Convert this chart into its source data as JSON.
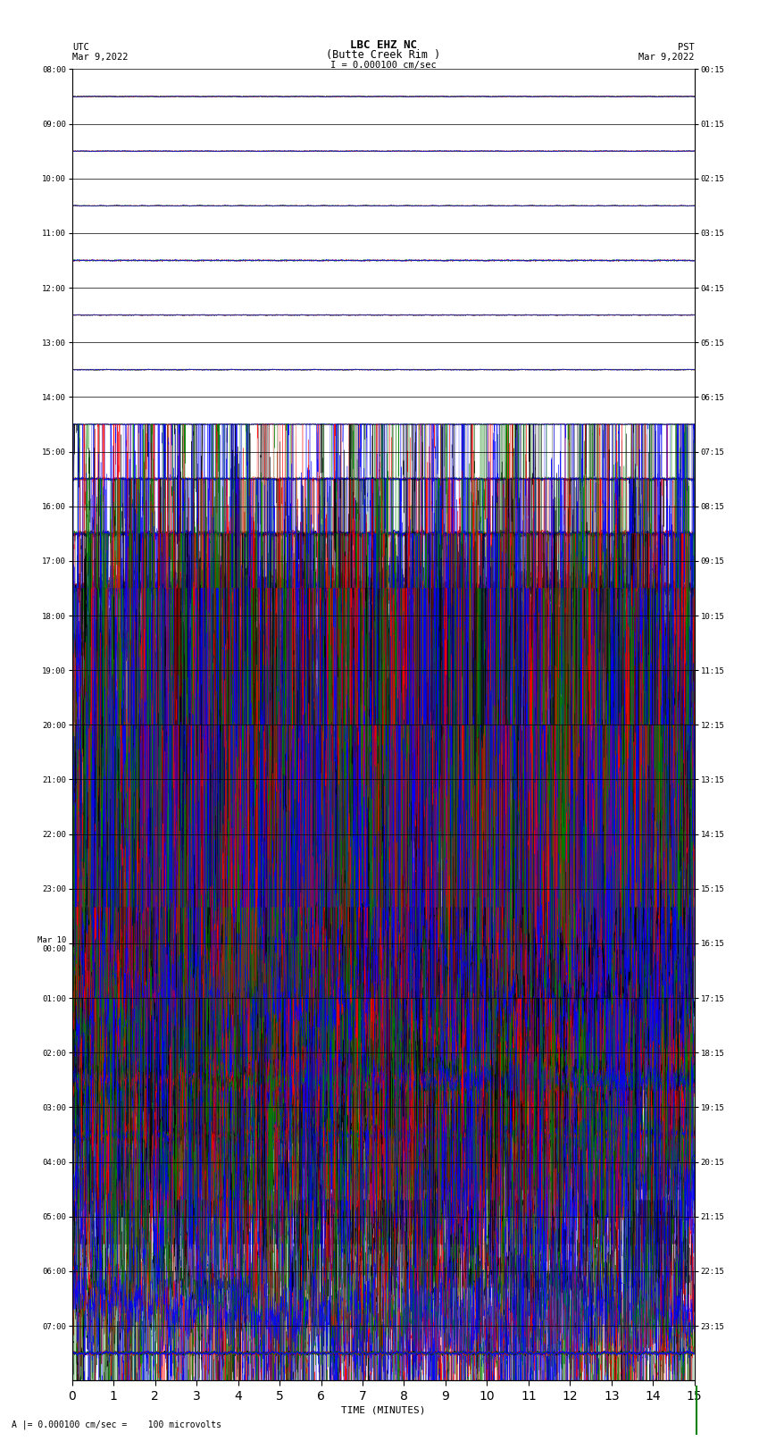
{
  "title_line1": "LBC EHZ NC",
  "title_line2": "(Butte Creek Rim )",
  "scale_label": "I = 0.000100 cm/sec",
  "utc_label": "UTC",
  "utc_date": "Mar 9,2022",
  "pst_label": "PST",
  "pst_date": "Mar 9,2022",
  "xlabel": "TIME (MINUTES)",
  "bottom_label": "A |= 0.000100 cm/sec =    100 microvolts",
  "xlim": [
    0,
    15
  ],
  "xticks": [
    0,
    1,
    2,
    3,
    4,
    5,
    6,
    7,
    8,
    9,
    10,
    11,
    12,
    13,
    14,
    15
  ],
  "fig_width": 8.5,
  "fig_height": 16.13,
  "bg_color": "white",
  "utc_times": [
    "08:00",
    "09:00",
    "10:00",
    "11:00",
    "12:00",
    "13:00",
    "14:00",
    "15:00",
    "16:00",
    "17:00",
    "18:00",
    "19:00",
    "20:00",
    "21:00",
    "22:00",
    "23:00",
    "Mar 10\n00:00",
    "01:00",
    "02:00",
    "03:00",
    "04:00",
    "05:00",
    "06:00",
    "07:00"
  ],
  "pst_times": [
    "00:15",
    "01:15",
    "02:15",
    "03:15",
    "04:15",
    "05:15",
    "06:15",
    "07:15",
    "08:15",
    "09:15",
    "10:15",
    "11:15",
    "12:15",
    "13:15",
    "14:15",
    "15:15",
    "16:15",
    "17:15",
    "18:15",
    "19:15",
    "20:15",
    "21:15",
    "22:15",
    "23:15"
  ],
  "num_rows": 24,
  "colors": [
    "black",
    "red",
    "green",
    "blue"
  ],
  "row_amplitudes": [
    0.03,
    0.03,
    0.04,
    0.06,
    0.04,
    0.04,
    0.04,
    0.1,
    0.18,
    0.4,
    0.9,
    2.5,
    4.5,
    4.5,
    4.5,
    4.5,
    3.5,
    1.8,
    0.8,
    0.35,
    1.5,
    3.0,
    1.5,
    0.12
  ],
  "row_noise_base": [
    0.015,
    0.015,
    0.015,
    0.02,
    0.015,
    0.015,
    0.015,
    0.04,
    0.07,
    0.15,
    0.35,
    1.0,
    2.0,
    2.0,
    2.0,
    2.0,
    1.5,
    0.7,
    0.3,
    0.12,
    0.6,
    1.5,
    0.6,
    0.05
  ]
}
